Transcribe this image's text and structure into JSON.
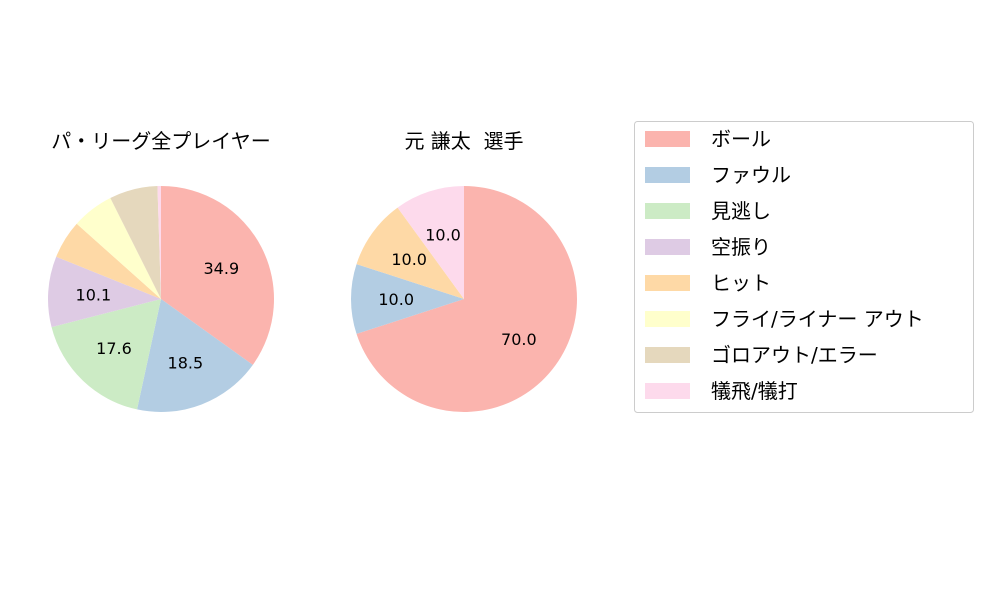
{
  "chart_data": [
    {
      "type": "pie",
      "title": "パ・リーグ全プレイヤー",
      "slices": [
        {
          "label": "ボール",
          "value": 34.9,
          "color": "#fbb4ae",
          "shown_label": "34.9"
        },
        {
          "label": "ファウル",
          "value": 18.5,
          "color": "#b3cde3",
          "shown_label": "18.5"
        },
        {
          "label": "見逃し",
          "value": 17.6,
          "color": "#ccebc5",
          "shown_label": "17.6"
        },
        {
          "label": "空振り",
          "value": 10.1,
          "color": "#decbe4",
          "shown_label": "10.1"
        },
        {
          "label": "ヒット",
          "value": 5.5,
          "color": "#fed9a6",
          "shown_label": ""
        },
        {
          "label": "フライ/ライナー アウト",
          "value": 6.0,
          "color": "#ffffcc",
          "shown_label": ""
        },
        {
          "label": "ゴロアウト/エラー",
          "value": 6.9,
          "color": "#e5d8bd",
          "shown_label": ""
        },
        {
          "label": "犠飛/犠打",
          "value": 0.5,
          "color": "#fddaec",
          "shown_label": ""
        }
      ]
    },
    {
      "type": "pie",
      "title": "元 謙太  選手",
      "slices": [
        {
          "label": "ボール",
          "value": 70.0,
          "color": "#fbb4ae",
          "shown_label": "70.0"
        },
        {
          "label": "ファウル",
          "value": 10.0,
          "color": "#b3cde3",
          "shown_label": "10.0"
        },
        {
          "label": "ヒット",
          "value": 10.0,
          "color": "#fed9a6",
          "shown_label": "10.0"
        },
        {
          "label": "犠飛/犠打",
          "value": 10.0,
          "color": "#fddaec",
          "shown_label": "10.0"
        }
      ]
    }
  ],
  "legend": {
    "placement": "right",
    "items": [
      {
        "label": "ボール",
        "color": "#fbb4ae"
      },
      {
        "label": "ファウル",
        "color": "#b3cde3"
      },
      {
        "label": "見逃し",
        "color": "#ccebc5"
      },
      {
        "label": "空振り",
        "color": "#decbe4"
      },
      {
        "label": "ヒット",
        "color": "#fed9a6"
      },
      {
        "label": "フライ/ライナー アウト",
        "color": "#ffffcc"
      },
      {
        "label": "ゴロアウト/エラー",
        "color": "#e5d8bd"
      },
      {
        "label": "犠飛/犠打",
        "color": "#fddaec"
      }
    ]
  }
}
